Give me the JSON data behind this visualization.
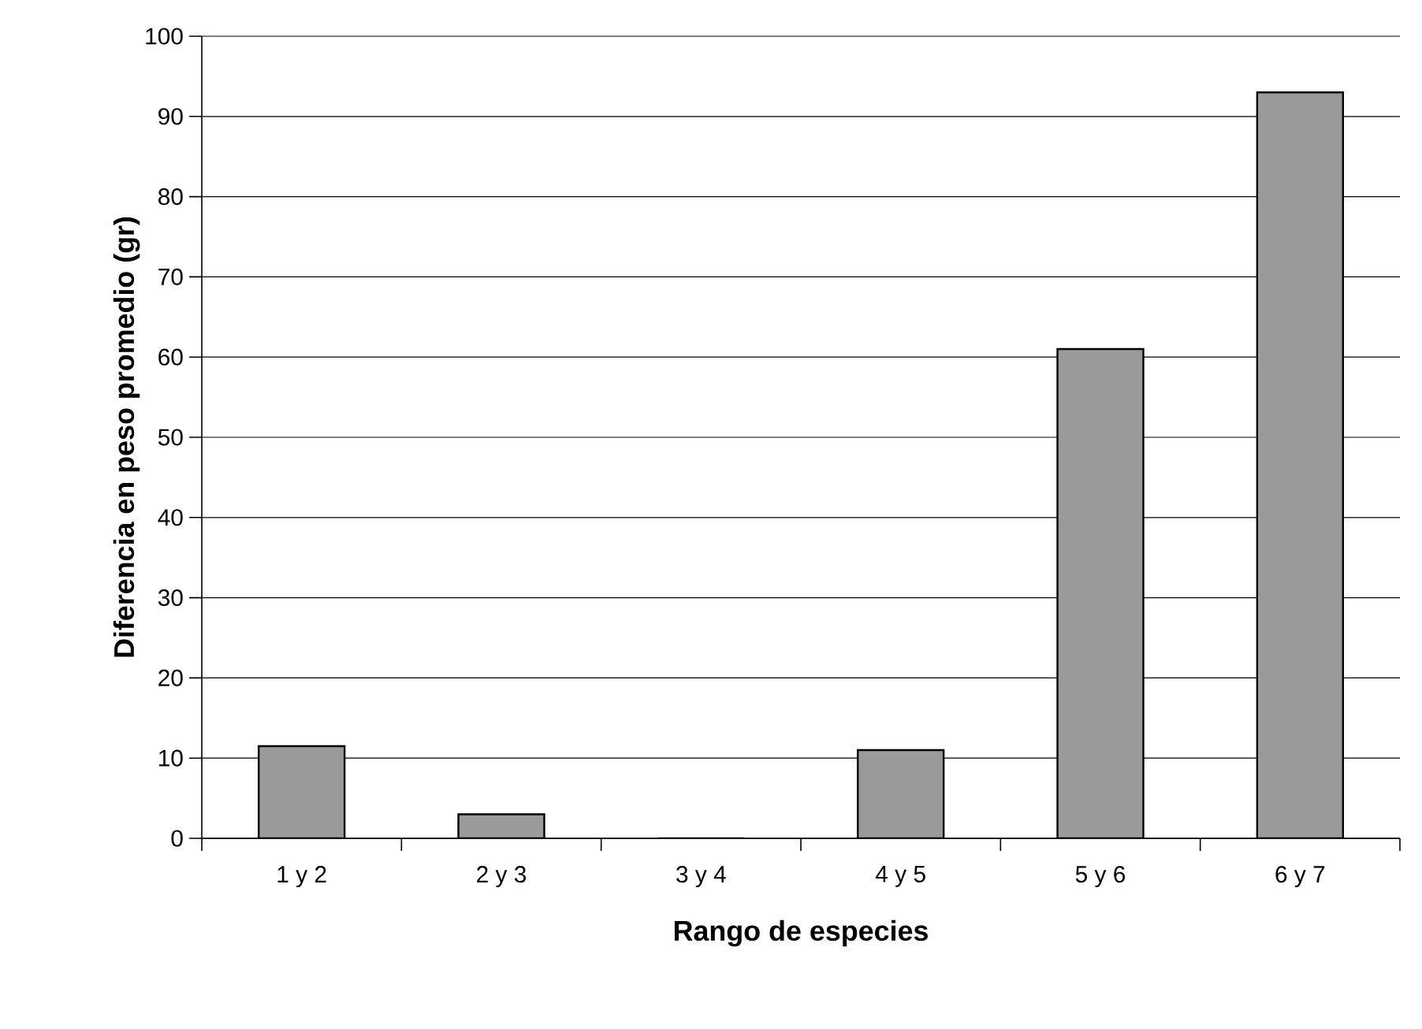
{
  "chart_data": {
    "type": "bar",
    "xlabel": "Rango de especies",
    "ylabel": "Diferencia en peso promedio (gr)",
    "categories": [
      "1 y 2",
      "2 y 3",
      "3 y 4",
      "4 y 5",
      "5 y 6",
      "6 y 7"
    ],
    "values": [
      11.5,
      3,
      0,
      11,
      61,
      93
    ],
    "color": "#9a9a9a",
    "ylim": [
      0,
      100
    ],
    "yticks": [
      0,
      10,
      20,
      30,
      40,
      50,
      60,
      70,
      80,
      90,
      100
    ],
    "grid": "y"
  }
}
